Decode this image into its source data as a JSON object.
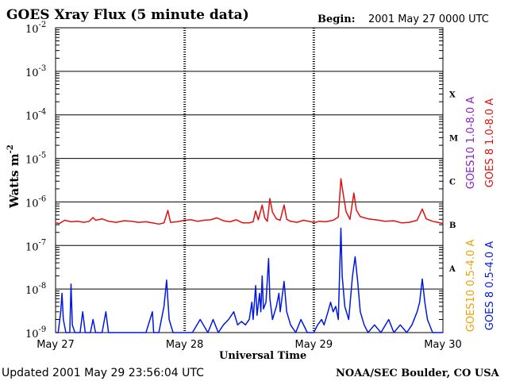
{
  "chart_data": {
    "type": "line",
    "title": "GOES Xray Flux (5 minute data)",
    "begin_label": "Begin:",
    "begin_value": "2001 May 27 0000 UTC",
    "xlabel": "Universal Time",
    "ylabel": "Watts m",
    "ylabel_exponent": "-2",
    "yscale": "log",
    "ylim": [
      1e-09,
      0.01
    ],
    "xlim": [
      0,
      3
    ],
    "x_ticks": [
      {
        "value": 0,
        "label": "May 27"
      },
      {
        "value": 1,
        "label": "May 28"
      },
      {
        "value": 2,
        "label": "May 29"
      },
      {
        "value": 3,
        "label": "May 30"
      }
    ],
    "y_ticks": [
      {
        "value": 1e-09,
        "base": "10",
        "exp": "-9"
      },
      {
        "value": 1e-08,
        "base": "10",
        "exp": "-8"
      },
      {
        "value": 1e-07,
        "base": "10",
        "exp": "-7"
      },
      {
        "value": 1e-06,
        "base": "10",
        "exp": "-6"
      },
      {
        "value": 1e-05,
        "base": "10",
        "exp": "-5"
      },
      {
        "value": 0.0001,
        "base": "10",
        "exp": "-4"
      },
      {
        "value": 0.001,
        "base": "10",
        "exp": "-3"
      },
      {
        "value": 0.01,
        "base": "10",
        "exp": "-2"
      }
    ],
    "flare_classes": [
      {
        "label": "A",
        "value": 3e-08
      },
      {
        "label": "B",
        "value": 3e-07
      },
      {
        "label": "C",
        "value": 3e-06
      },
      {
        "label": "M",
        "value": 3e-05
      },
      {
        "label": "X",
        "value": 0.0003
      }
    ],
    "grid": true,
    "legend_position": "right",
    "series": [
      {
        "name": "GOES 8 1.0-8.0 A",
        "color": "#e01010",
        "points": [
          [
            0.0,
            3.3e-07
          ],
          [
            0.03,
            3.2e-07
          ],
          [
            0.07,
            3.8e-07
          ],
          [
            0.12,
            3.5e-07
          ],
          [
            0.17,
            3.6e-07
          ],
          [
            0.22,
            3.4e-07
          ],
          [
            0.26,
            3.6e-07
          ],
          [
            0.29,
            4.4e-07
          ],
          [
            0.31,
            3.8e-07
          ],
          [
            0.36,
            4.1e-07
          ],
          [
            0.41,
            3.6e-07
          ],
          [
            0.47,
            3.4e-07
          ],
          [
            0.53,
            3.7e-07
          ],
          [
            0.59,
            3.6e-07
          ],
          [
            0.64,
            3.4e-07
          ],
          [
            0.7,
            3.5e-07
          ],
          [
            0.75,
            3.3e-07
          ],
          [
            0.8,
            3.1e-07
          ],
          [
            0.84,
            3.3e-07
          ],
          [
            0.87,
            6.4e-07
          ],
          [
            0.89,
            3.4e-07
          ],
          [
            0.94,
            3.5e-07
          ],
          [
            1.0,
            3.8e-07
          ],
          [
            1.05,
            3.9e-07
          ],
          [
            1.1,
            3.6e-07
          ],
          [
            1.15,
            3.8e-07
          ],
          [
            1.2,
            3.9e-07
          ],
          [
            1.25,
            4.3e-07
          ],
          [
            1.3,
            3.7e-07
          ],
          [
            1.35,
            3.5e-07
          ],
          [
            1.4,
            3.9e-07
          ],
          [
            1.45,
            3.3e-07
          ],
          [
            1.5,
            3.3e-07
          ],
          [
            1.53,
            3.5e-07
          ],
          [
            1.55,
            6.2e-07
          ],
          [
            1.57,
            3.9e-07
          ],
          [
            1.6,
            8.5e-07
          ],
          [
            1.62,
            4.3e-07
          ],
          [
            1.64,
            3.6e-07
          ],
          [
            1.66,
            1.2e-06
          ],
          [
            1.68,
            5.8e-07
          ],
          [
            1.71,
            4.1e-07
          ],
          [
            1.74,
            3.8e-07
          ],
          [
            1.77,
            8.5e-07
          ],
          [
            1.79,
            4e-07
          ],
          [
            1.82,
            3.6e-07
          ],
          [
            1.87,
            3.4e-07
          ],
          [
            1.92,
            3.8e-07
          ],
          [
            1.98,
            3.5e-07
          ],
          [
            2.0,
            3.3e-07
          ],
          [
            2.04,
            3.6e-07
          ],
          [
            2.09,
            3.5e-07
          ],
          [
            2.15,
            3.8e-07
          ],
          [
            2.19,
            4.5e-07
          ],
          [
            2.21,
            3.4e-06
          ],
          [
            2.23,
            1.4e-06
          ],
          [
            2.25,
            6e-07
          ],
          [
            2.28,
            4e-07
          ],
          [
            2.31,
            1.6e-06
          ],
          [
            2.33,
            6.5e-07
          ],
          [
            2.36,
            4.6e-07
          ],
          [
            2.42,
            4.1e-07
          ],
          [
            2.48,
            3.9e-07
          ],
          [
            2.55,
            3.6e-07
          ],
          [
            2.62,
            3.7e-07
          ],
          [
            2.68,
            3.3e-07
          ],
          [
            2.74,
            3.4e-07
          ],
          [
            2.8,
            3.8e-07
          ],
          [
            2.84,
            6.9e-07
          ],
          [
            2.87,
            4.1e-07
          ],
          [
            2.92,
            3.6e-07
          ],
          [
            2.96,
            3.4e-07
          ],
          [
            3.0,
            3.2e-07
          ]
        ]
      },
      {
        "name": "GOES 8 0.5-4.0 A",
        "color": "#0018e0",
        "points": [
          [
            0.0,
            1e-09
          ],
          [
            0.02,
            1e-09
          ],
          [
            0.04,
            3e-09
          ],
          [
            0.05,
            8e-09
          ],
          [
            0.06,
            2e-09
          ],
          [
            0.08,
            1e-09
          ],
          [
            0.11,
            1e-09
          ],
          [
            0.12,
            1.3e-08
          ],
          [
            0.13,
            1.5e-09
          ],
          [
            0.15,
            1e-09
          ],
          [
            0.19,
            1e-09
          ],
          [
            0.21,
            3e-09
          ],
          [
            0.23,
            1e-09
          ],
          [
            0.27,
            1e-09
          ],
          [
            0.29,
            2e-09
          ],
          [
            0.31,
            1e-09
          ],
          [
            0.36,
            1e-09
          ],
          [
            0.39,
            3e-09
          ],
          [
            0.41,
            1e-09
          ],
          [
            0.47,
            1e-09
          ],
          [
            0.53,
            1e-09
          ],
          [
            0.58,
            1e-09
          ],
          [
            0.62,
            1e-09
          ],
          [
            0.66,
            1e-09
          ],
          [
            0.7,
            1e-09
          ],
          [
            0.75,
            3e-09
          ],
          [
            0.76,
            1e-09
          ],
          [
            0.8,
            1e-09
          ],
          [
            0.84,
            4e-09
          ],
          [
            0.86,
            1.6e-08
          ],
          [
            0.88,
            2e-09
          ],
          [
            0.91,
            1e-09
          ],
          [
            0.96,
            1e-09
          ],
          [
            1.0,
            1e-09
          ],
          [
            1.06,
            1e-09
          ],
          [
            1.12,
            2e-09
          ],
          [
            1.18,
            1e-09
          ],
          [
            1.22,
            2e-09
          ],
          [
            1.26,
            1e-09
          ],
          [
            1.3,
            1.5e-09
          ],
          [
            1.34,
            2e-09
          ],
          [
            1.38,
            3e-09
          ],
          [
            1.41,
            1.5e-09
          ],
          [
            1.44,
            1.8e-09
          ],
          [
            1.47,
            1.5e-09
          ],
          [
            1.5,
            2e-09
          ],
          [
            1.52,
            5e-09
          ],
          [
            1.53,
            2e-09
          ],
          [
            1.55,
            1.2e-08
          ],
          [
            1.56,
            2.5e-09
          ],
          [
            1.58,
            8e-09
          ],
          [
            1.59,
            3e-09
          ],
          [
            1.6,
            2e-08
          ],
          [
            1.61,
            3.5e-09
          ],
          [
            1.63,
            5e-09
          ],
          [
            1.65,
            5e-08
          ],
          [
            1.66,
            6e-09
          ],
          [
            1.68,
            2e-09
          ],
          [
            1.71,
            4e-09
          ],
          [
            1.73,
            8e-09
          ],
          [
            1.74,
            3e-09
          ],
          [
            1.77,
            1.5e-08
          ],
          [
            1.79,
            3e-09
          ],
          [
            1.82,
            1.5e-09
          ],
          [
            1.86,
            1e-09
          ],
          [
            1.9,
            2e-09
          ],
          [
            1.95,
            1e-09
          ],
          [
            2.0,
            1e-09
          ],
          [
            2.03,
            1.5e-09
          ],
          [
            2.06,
            2e-09
          ],
          [
            2.08,
            1.5e-09
          ],
          [
            2.11,
            3e-09
          ],
          [
            2.13,
            5e-09
          ],
          [
            2.15,
            3e-09
          ],
          [
            2.17,
            4e-09
          ],
          [
            2.19,
            2e-09
          ],
          [
            2.21,
            2.5e-07
          ],
          [
            2.22,
            2e-08
          ],
          [
            2.24,
            4e-09
          ],
          [
            2.27,
            2e-09
          ],
          [
            2.3,
            2e-08
          ],
          [
            2.32,
            5.5e-08
          ],
          [
            2.34,
            1.5e-08
          ],
          [
            2.36,
            3e-09
          ],
          [
            2.39,
            1.5e-09
          ],
          [
            2.42,
            1e-09
          ],
          [
            2.47,
            1.5e-09
          ],
          [
            2.52,
            1e-09
          ],
          [
            2.58,
            2e-09
          ],
          [
            2.62,
            1e-09
          ],
          [
            2.67,
            1.5e-09
          ],
          [
            2.72,
            1e-09
          ],
          [
            2.76,
            1.5e-09
          ],
          [
            2.8,
            3e-09
          ],
          [
            2.82,
            5e-09
          ],
          [
            2.84,
            1.7e-08
          ],
          [
            2.86,
            5e-09
          ],
          [
            2.88,
            2e-09
          ],
          [
            2.92,
            1e-09
          ],
          [
            2.97,
            1e-09
          ],
          [
            3.0,
            1e-09
          ]
        ]
      }
    ],
    "legend": [
      {
        "label": "GOES10 1.0-8.0 A",
        "color": "#8a1ecc"
      },
      {
        "label": "GOES 8 1.0-8.0 A",
        "color": "#e01010"
      },
      {
        "label": "GOES10 0.5-4.0 A",
        "color": "#f0a000"
      },
      {
        "label": "GOES 8 0.5-4.0 A",
        "color": "#0018e0"
      }
    ]
  },
  "footer": {
    "updated": "Updated 2001 May 29 23:56:04 UTC",
    "credit": "NOAA/SEC Boulder, CO USA"
  }
}
